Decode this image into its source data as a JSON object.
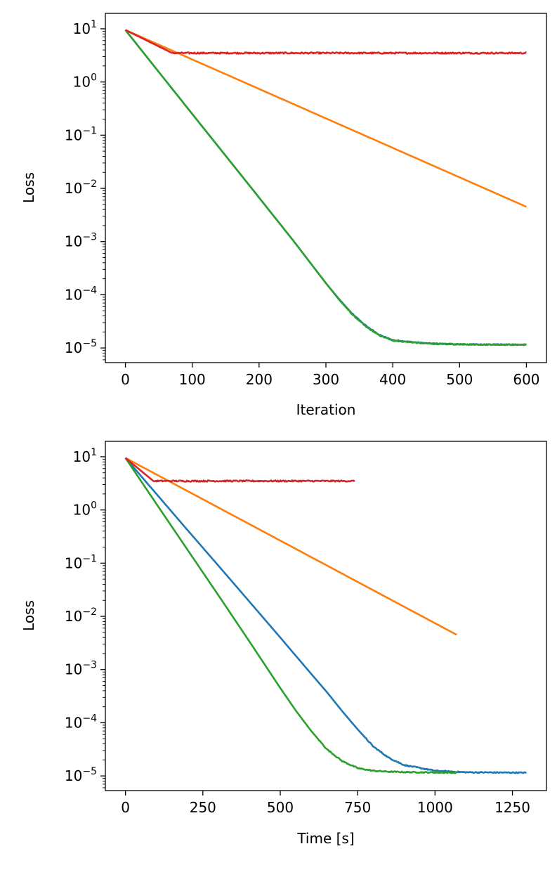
{
  "chart_data": [
    {
      "type": "line",
      "xlabel": "Iteration",
      "ylabel": "Loss",
      "yscale": "log",
      "xlim": [
        -30,
        630
      ],
      "ylim": [
        5.3e-06,
        19.5
      ],
      "x_ticks": [
        0,
        100,
        200,
        300,
        400,
        500,
        600
      ],
      "x_tick_labels": [
        "0",
        "100",
        "200",
        "300",
        "400",
        "500",
        "600"
      ],
      "y_ticks": [
        {
          "value": 10,
          "base": "10",
          "exp": "1"
        },
        {
          "value": 1,
          "base": "10",
          "exp": "0"
        },
        {
          "value": 0.1,
          "base": "10",
          "exp": "−1"
        },
        {
          "value": 0.01,
          "base": "10",
          "exp": "−2"
        },
        {
          "value": 0.001,
          "base": "10",
          "exp": "−3"
        },
        {
          "value": 0.0001,
          "base": "10",
          "exp": "−4"
        },
        {
          "value": 1e-05,
          "base": "10",
          "exp": "−5"
        }
      ],
      "series": [
        {
          "name": "blue",
          "color": "#1f77b4",
          "x": [
            0,
            50,
            100,
            150,
            200,
            250,
            300,
            320,
            340,
            360,
            380,
            400,
            450,
            500,
            550,
            600
          ],
          "y": [
            9.5,
            1.54,
            0.25,
            0.041,
            0.0067,
            0.00109,
            0.000165,
            8.2e-05,
            4.3e-05,
            2.6e-05,
            1.75e-05,
            1.4e-05,
            1.22e-05,
            1.17e-05,
            1.16e-05,
            1.15e-05
          ],
          "noise": 0.02
        },
        {
          "name": "orange",
          "color": "#ff7f0e",
          "x": [
            0,
            600
          ],
          "y": [
            9.5,
            0.0045
          ],
          "noise": 0
        },
        {
          "name": "green",
          "color": "#2ca02c",
          "x": [
            0,
            50,
            100,
            150,
            200,
            250,
            300,
            320,
            340,
            360,
            380,
            400,
            450,
            500,
            550,
            600
          ],
          "y": [
            9.5,
            1.54,
            0.25,
            0.041,
            0.0067,
            0.00109,
            0.000165,
            8e-05,
            4.2e-05,
            2.5e-05,
            1.72e-05,
            1.38e-05,
            1.21e-05,
            1.17e-05,
            1.16e-05,
            1.15e-05
          ],
          "noise": 0.02
        },
        {
          "name": "red",
          "color": "#d62728",
          "x": [
            0,
            70,
            100,
            200,
            300,
            400,
            500,
            600
          ],
          "y": [
            9.5,
            3.5,
            3.5,
            3.5,
            3.5,
            3.5,
            3.5,
            3.5
          ],
          "noise": 0.025,
          "noise_from_x": 70
        }
      ]
    },
    {
      "type": "line",
      "xlabel": "Time [s]",
      "ylabel": "Loss",
      "yscale": "log",
      "xlim": [
        -65,
        1360
      ],
      "ylim": [
        5.3e-06,
        19.5
      ],
      "x_ticks": [
        0,
        250,
        500,
        750,
        1000,
        1250
      ],
      "x_tick_labels": [
        "0",
        "250",
        "500",
        "750",
        "1000",
        "1250"
      ],
      "y_ticks": [
        {
          "value": 10,
          "base": "10",
          "exp": "1"
        },
        {
          "value": 1,
          "base": "10",
          "exp": "0"
        },
        {
          "value": 0.1,
          "base": "10",
          "exp": "−1"
        },
        {
          "value": 0.01,
          "base": "10",
          "exp": "−2"
        },
        {
          "value": 0.001,
          "base": "10",
          "exp": "−3"
        },
        {
          "value": 0.0001,
          "base": "10",
          "exp": "−4"
        },
        {
          "value": 1e-05,
          "base": "10",
          "exp": "−5"
        }
      ],
      "series": [
        {
          "name": "blue",
          "color": "#1f77b4",
          "x": [
            0,
            100,
            200,
            300,
            400,
            500,
            600,
            650,
            700,
            750,
            800,
            850,
            900,
            1000,
            1100,
            1200,
            1295
          ],
          "y": [
            9.5,
            2.0,
            0.42,
            0.09,
            0.019,
            0.004,
            0.00083,
            0.00038,
            0.000165,
            7.5e-05,
            3.6e-05,
            2.2e-05,
            1.6e-05,
            1.25e-05,
            1.17e-05,
            1.16e-05,
            1.15e-05
          ],
          "noise": 0.02
        },
        {
          "name": "orange",
          "color": "#ff7f0e",
          "x": [
            0,
            1070
          ],
          "y": [
            9.5,
            0.0045
          ],
          "noise": 0
        },
        {
          "name": "green",
          "color": "#2ca02c",
          "x": [
            0,
            100,
            200,
            300,
            400,
            500,
            550,
            600,
            650,
            700,
            750,
            800,
            850,
            900,
            1000,
            1070
          ],
          "y": [
            9.5,
            1.3,
            0.18,
            0.025,
            0.0034,
            0.00045,
            0.00017,
            7e-05,
            3.2e-05,
            1.9e-05,
            1.4e-05,
            1.25e-05,
            1.2e-05,
            1.18e-05,
            1.16e-05,
            1.15e-05
          ],
          "noise": 0.02
        },
        {
          "name": "red",
          "color": "#d62728",
          "x": [
            0,
            90,
            200,
            300,
            400,
            500,
            600,
            740
          ],
          "y": [
            9.5,
            3.5,
            3.5,
            3.5,
            3.5,
            3.5,
            3.5,
            3.5
          ],
          "noise": 0.025,
          "noise_from_x": 90
        }
      ]
    }
  ]
}
